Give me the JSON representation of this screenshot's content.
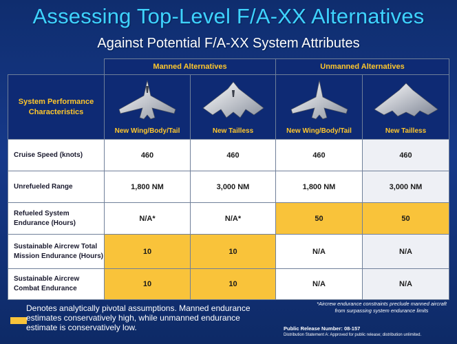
{
  "title": "Assessing Top-Level F/A-XX Alternatives",
  "subtitle": "Against Potential  F/A-XX System Attributes",
  "table": {
    "groups": {
      "manned": "Manned Alternatives",
      "unmanned": "Unmanned Alternatives"
    },
    "header_label": "System Performance Characteristics",
    "columns": [
      "New Wing/Body/Tail",
      "New Tailless",
      "New Wing/Body/Tail",
      "New Tailless"
    ],
    "rows": [
      {
        "label": "Cruise Speed (knots)",
        "values": [
          "460",
          "460",
          "460",
          "460"
        ]
      },
      {
        "label": "Unrefueled Range",
        "values": [
          "1,800 NM",
          "3,000 NM",
          "1,800 NM",
          "3,000 NM"
        ]
      },
      {
        "label": "Refueled System Endurance (Hours)",
        "values": [
          "N/A*",
          "N/A*",
          "50",
          "50"
        ]
      },
      {
        "label": "Sustainable Aircrew Total Mission Endurance (Hours)",
        "values": [
          "10",
          "10",
          "N/A",
          "N/A"
        ]
      },
      {
        "label": "Sustainable Aircrew Combat Endurance",
        "values": [
          "10",
          "10",
          "N/A",
          "N/A"
        ]
      }
    ]
  },
  "legend_note": "Denotes analytically pivotal assumptions.  Manned endurance estimates conservatively high, while unmanned endurance estimate is conservatively low.",
  "footnote": "*Aircrew endurance constraints preclude manned aircraft from surpassing system endurance limits",
  "release_number": "Public Release Number: 08-157",
  "distribution": "Distribution Statement A: Approved for public release; distribution unlimited.",
  "colors": {
    "highlight": "#f9c33a",
    "title": "#3fd3ff",
    "header_text": "#ffc72c",
    "background": "#14378a"
  },
  "icons": [
    "manned-wing-body-tail-aircraft-icon",
    "manned-tailless-aircraft-icon",
    "unmanned-wing-body-tail-aircraft-icon",
    "unmanned-tailless-aircraft-icon"
  ]
}
